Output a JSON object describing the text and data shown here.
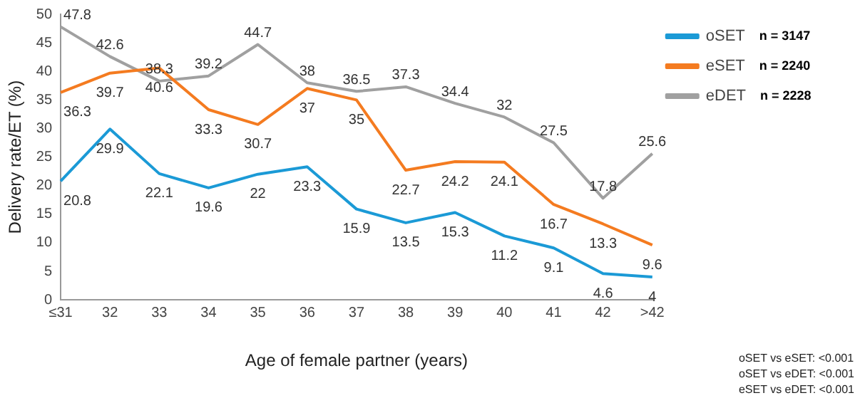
{
  "chart_data": {
    "type": "line",
    "xlabel": "Age of female partner (years)",
    "ylabel": "Delivery rate/ET (%)",
    "categories": [
      "≤31",
      "32",
      "33",
      "34",
      "35",
      "36",
      "37",
      "38",
      "39",
      "40",
      "41",
      "42",
      ">42"
    ],
    "series": [
      {
        "name": "oSET",
        "color": "#1b9ad6",
        "values": [
          20.8,
          29.9,
          22.1,
          19.6,
          22,
          23.3,
          15.9,
          13.5,
          15.3,
          11.2,
          9.1,
          4.6,
          4
        ]
      },
      {
        "name": "eSET",
        "color": "#f47b20",
        "values": [
          36.3,
          39.7,
          40.6,
          33.3,
          30.7,
          37,
          35,
          22.7,
          24.2,
          24.1,
          16.7,
          13.3,
          9.6
        ]
      },
      {
        "name": "eDET",
        "color": "#a0a0a0",
        "values": [
          47.8,
          42.6,
          38.3,
          39.2,
          44.7,
          38,
          36.5,
          37.3,
          34.4,
          32,
          27.5,
          17.8,
          25.6
        ]
      }
    ],
    "ylim": [
      0,
      50
    ],
    "yticks": [
      0,
      5,
      10,
      15,
      20,
      25,
      30,
      35,
      40,
      45,
      50
    ],
    "grid": false,
    "legend": "right",
    "marker": "none",
    "line_style": "solid",
    "data_labels": true,
    "annotations": [
      "n = 3147",
      "n = 2240",
      "n = 2228",
      "oSET vs eSET: <0.001",
      "oSET vs eDET: <0.001",
      "eSET vs eDET: <0.001"
    ]
  }
}
